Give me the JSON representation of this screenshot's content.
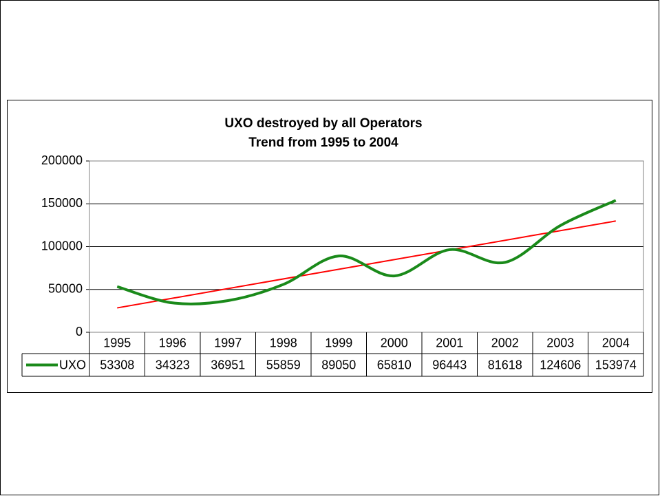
{
  "chart_data": {
    "type": "line",
    "title": "UXO destroyed by all Operators",
    "subtitle": "Trend from 1995 to 2004",
    "categories": [
      "1995",
      "1996",
      "1997",
      "1998",
      "1999",
      "2000",
      "2001",
      "2002",
      "2003",
      "2004"
    ],
    "series": [
      {
        "name": "UXO",
        "color": "#1a8a1a",
        "values": [
          53308,
          34323,
          36951,
          55859,
          89050,
          65810,
          96443,
          81618,
          124606,
          153974
        ]
      }
    ],
    "trendline": "linear",
    "trendline_color": "#ff0000",
    "ylim": [
      0,
      200000
    ],
    "yticks": [
      0,
      50000,
      100000,
      150000,
      200000
    ],
    "grid": true,
    "smooth": true,
    "data_table": true
  }
}
